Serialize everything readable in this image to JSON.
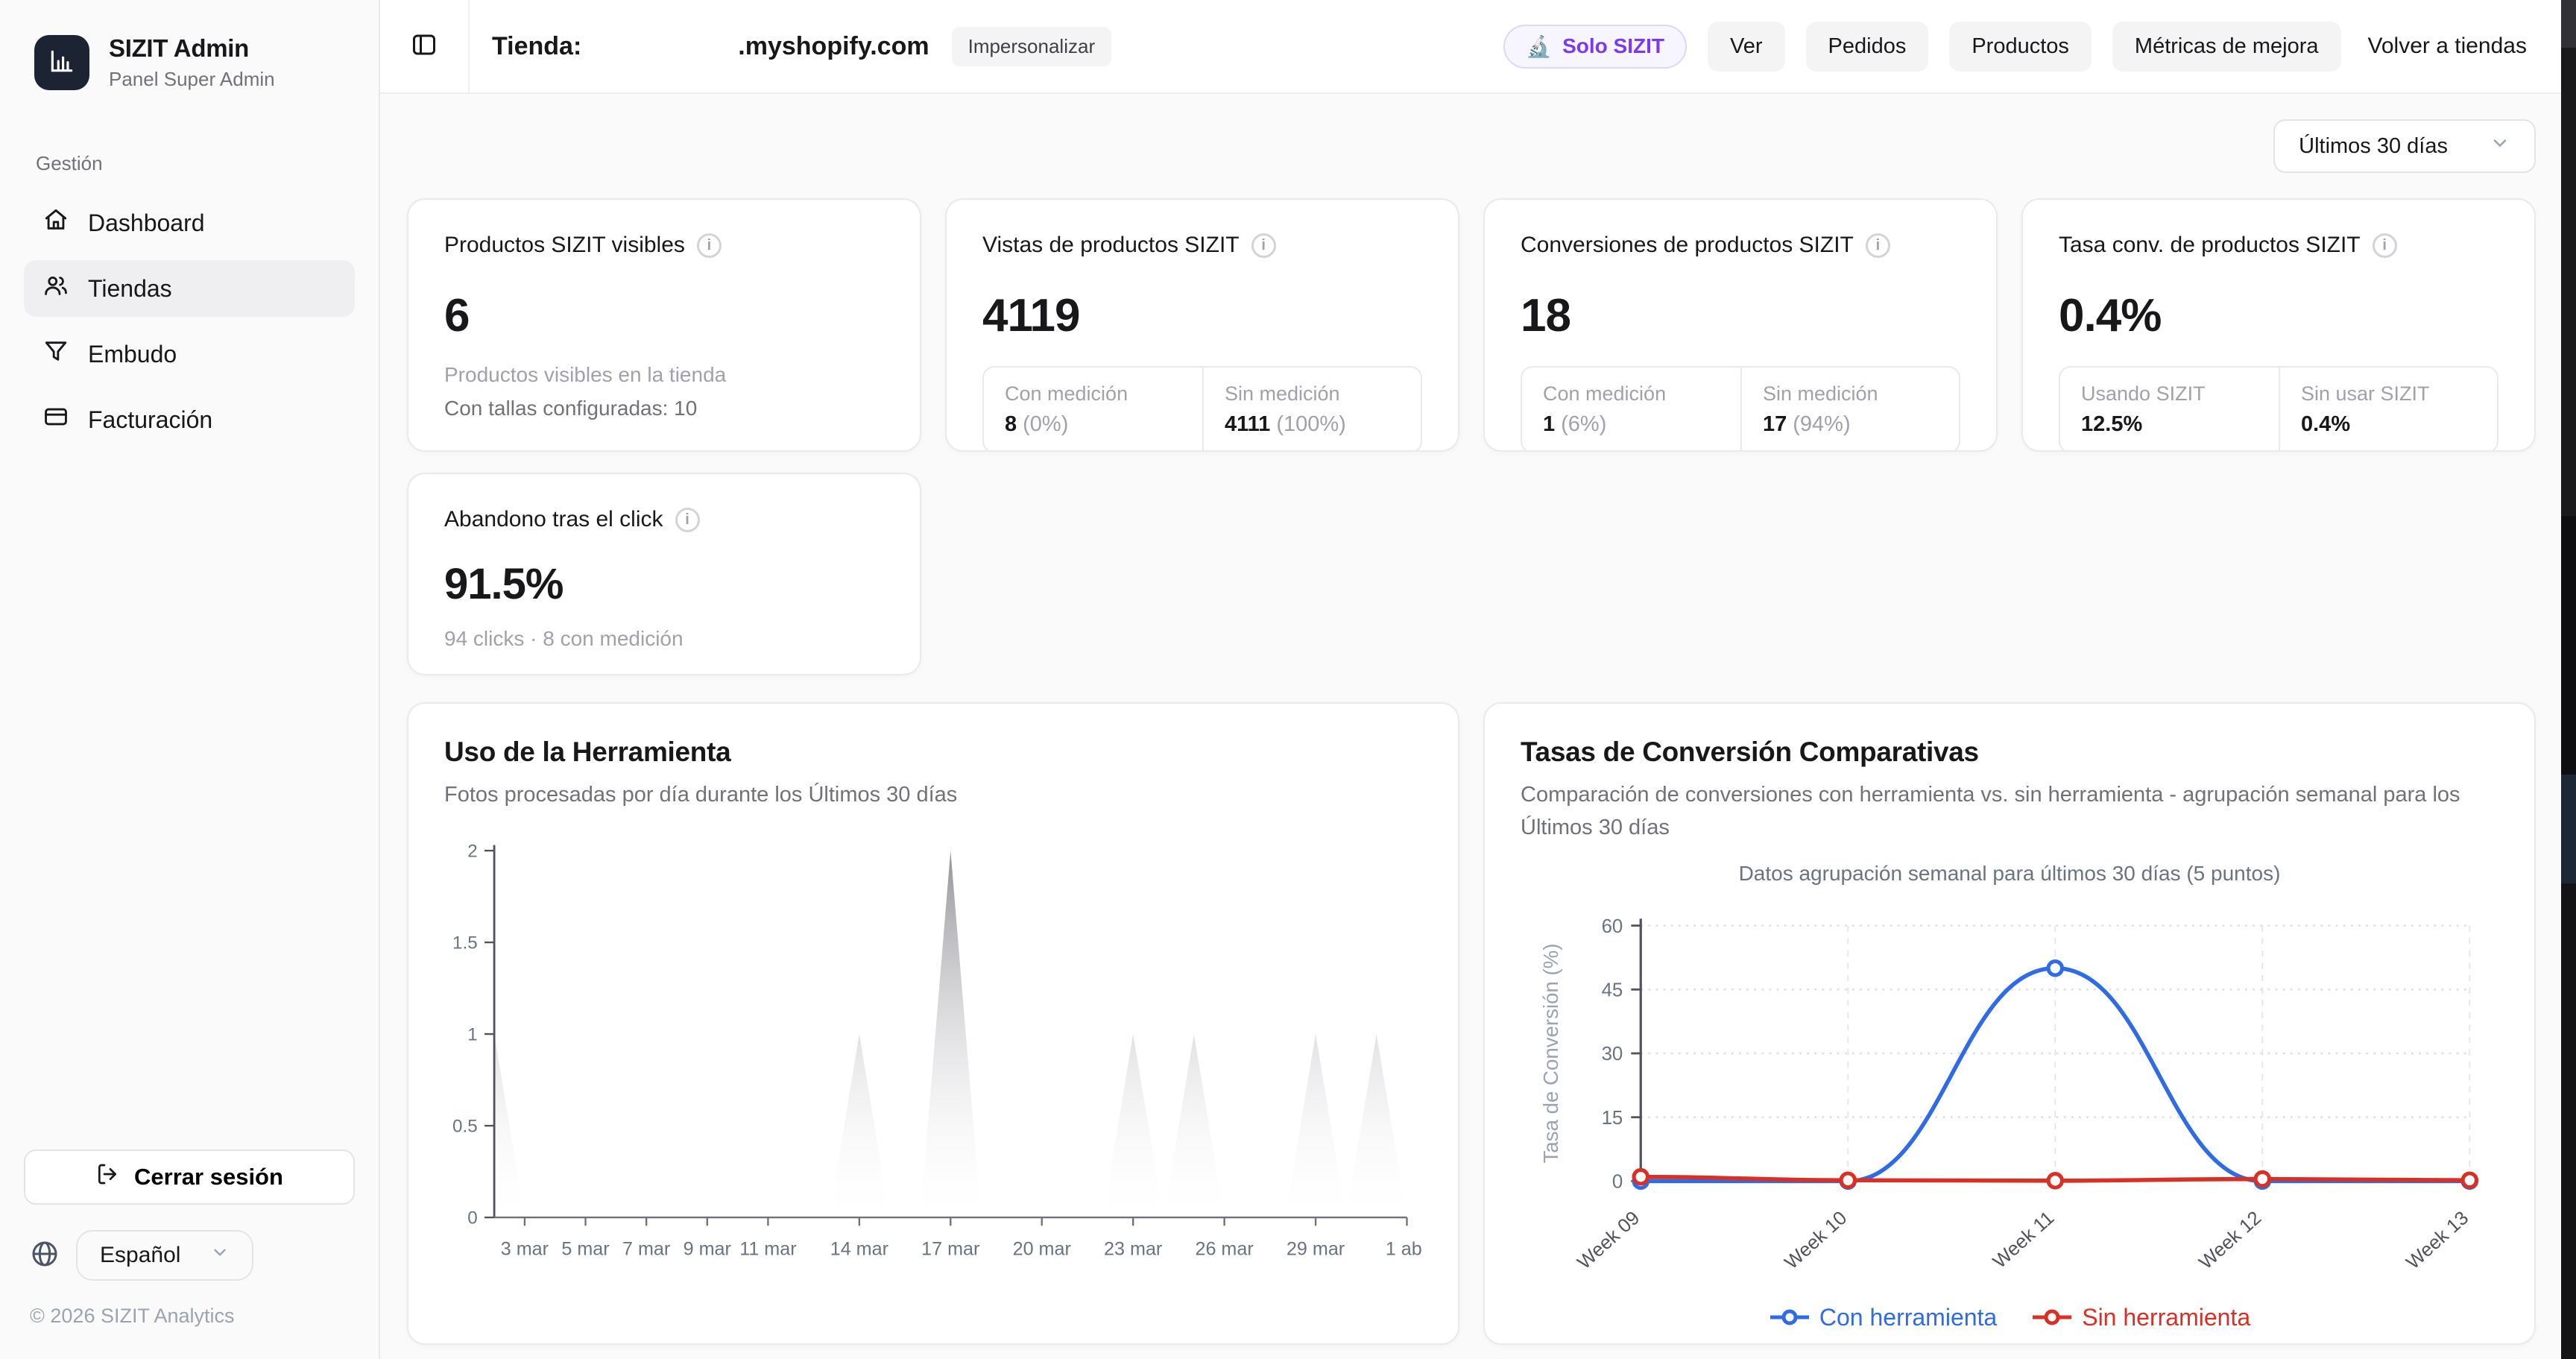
{
  "sidebar": {
    "brand": {
      "title": "SIZIT Admin",
      "subtitle": "Panel Super Admin"
    },
    "section_label": "Gestión",
    "items": [
      {
        "label": "Dashboard"
      },
      {
        "label": "Tiendas"
      },
      {
        "label": "Embudo"
      },
      {
        "label": "Facturación"
      }
    ],
    "logout_label": "Cerrar sesión",
    "language": "Español",
    "copyright": "© 2026 SIZIT Analytics"
  },
  "header": {
    "store_label": "Tienda:",
    "store_domain": ".myshopify.com",
    "impersonate_badge": "Impersonalizar",
    "solo_emoji": "🔬",
    "solo_badge": "Solo SIZIT",
    "buttons": [
      "Ver",
      "Pedidos",
      "Productos",
      "Métricas de mejora"
    ],
    "back_link": "Volver a tiendas"
  },
  "filters": {
    "range": "Últimos 30 días"
  },
  "cards": [
    {
      "title": "Productos SIZIT visibles",
      "value": "6",
      "line1": "Productos visibles en la tienda",
      "line2": "Con tallas configuradas: 10"
    },
    {
      "title": "Vistas de productos SIZIT",
      "value": "4119",
      "split": {
        "left": {
          "label": "Con medición",
          "value": "8",
          "pct": "(0%)"
        },
        "right": {
          "label": "Sin medición",
          "value": "4111",
          "pct": "(100%)"
        }
      }
    },
    {
      "title": "Conversiones de productos SIZIT",
      "value": "18",
      "split": {
        "left": {
          "label": "Con medición",
          "value": "1",
          "pct": "(6%)"
        },
        "right": {
          "label": "Sin medición",
          "value": "17",
          "pct": "(94%)"
        }
      }
    },
    {
      "title": "Tasa conv. de productos SIZIT",
      "value": "0.4%",
      "split": {
        "left": {
          "label": "Usando SIZIT",
          "value": "12.5%"
        },
        "right": {
          "label": "Sin usar SIZIT",
          "value": "0.4%"
        }
      }
    }
  ],
  "abandon_card": {
    "title": "Abandono tras el click",
    "value": "91.5%",
    "subtitle": "94 clicks · 8 con medición"
  },
  "chart_data": [
    {
      "type": "area",
      "title": "Uso de la Herramienta",
      "subtitle": "Fotos procesadas por día durante los Últimos 30 días",
      "x_start_label": "2 mar",
      "n_days": 31,
      "ylim": [
        0,
        2
      ],
      "y_ticks": [
        0,
        0.5,
        1,
        1.5,
        2
      ],
      "x_ticks": [
        {
          "label": "3 mar",
          "day": 1
        },
        {
          "label": "5 mar",
          "day": 3
        },
        {
          "label": "7 mar",
          "day": 5
        },
        {
          "label": "9 mar",
          "day": 7
        },
        {
          "label": "11 mar",
          "day": 9
        },
        {
          "label": "14 mar",
          "day": 12
        },
        {
          "label": "17 mar",
          "day": 15
        },
        {
          "label": "20 mar",
          "day": 18
        },
        {
          "label": "23 mar",
          "day": 21
        },
        {
          "label": "26 mar",
          "day": 24
        },
        {
          "label": "29 mar",
          "day": 27
        },
        {
          "label": "1 abr",
          "day": 30
        }
      ],
      "points": [
        {
          "label": "2 mar",
          "day": 0,
          "value": 1
        },
        {
          "label": "14 mar",
          "day": 12,
          "value": 1
        },
        {
          "label": "17 mar",
          "day": 15,
          "value": 2
        },
        {
          "label": "23 mar",
          "day": 21,
          "value": 1
        },
        {
          "label": "25 mar",
          "day": 23,
          "value": 1
        },
        {
          "label": "29 mar",
          "day": 27,
          "value": 1
        },
        {
          "label": "31 mar",
          "day": 29,
          "value": 1
        }
      ],
      "area_gradient_top": "#8e8e93",
      "grid": false
    },
    {
      "type": "line",
      "title": "Tasas de Conversión Comparativas",
      "subtitle": "Comparación de conversiones con herramienta vs. sin herramienta - agrupación semanal para los Últimos 30 días",
      "inner_title": "Datos agrupación semanal para últimos 30 días (5 puntos)",
      "ylabel": "Tasa de Conversión (%)",
      "ylim": [
        0,
        60
      ],
      "y_ticks": [
        0,
        15,
        30,
        45,
        60
      ],
      "categories": [
        "Week 09",
        "Week 10",
        "Week 11",
        "Week 12",
        "Week 13"
      ],
      "series": [
        {
          "name": "Con herramienta",
          "color": "#2e6be5",
          "values": [
            0,
            0,
            50,
            0,
            0
          ]
        },
        {
          "name": "Sin herramienta",
          "color": "#d93025",
          "values": [
            1,
            0.2,
            0.1,
            0.5,
            0.2
          ]
        }
      ],
      "grid": true,
      "legend_position": "bottom"
    }
  ]
}
